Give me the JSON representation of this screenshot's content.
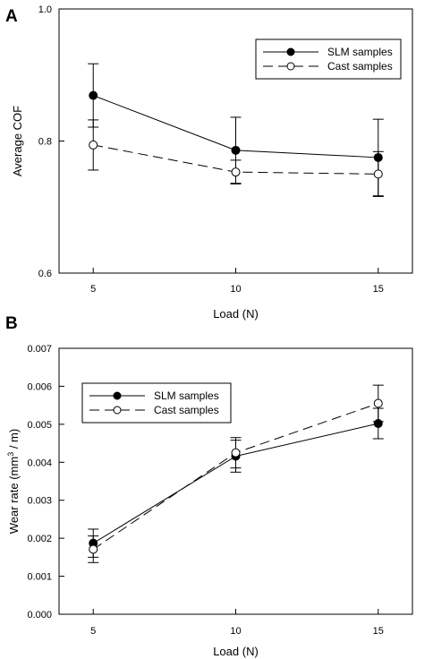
{
  "chart_data": [
    {
      "type": "line",
      "panel_label": "A",
      "xlabel": "Load (N)",
      "ylabel": "Average COF",
      "ylabel_sup": "",
      "ylabel_suffix": "",
      "x": [
        5,
        10,
        15
      ],
      "xlim": [
        3.8,
        16.2
      ],
      "ylim": [
        0.6,
        1.0
      ],
      "x_ticks": [
        "5",
        "10",
        "15"
      ],
      "y_ticks": [
        "0.6",
        "0.8",
        "1.0"
      ],
      "y_tick_values": [
        0.6,
        0.8,
        1.0
      ],
      "grid": false,
      "legend_position": "top-right",
      "series": [
        {
          "name": "SLM samples",
          "marker": "filled-circle",
          "line": "solid",
          "values": [
            0.869,
            0.786,
            0.775
          ],
          "error": [
            0.048,
            0.05,
            0.058
          ]
        },
        {
          "name": "Cast samples",
          "marker": "open-circle",
          "line": "dashed",
          "values": [
            0.794,
            0.753,
            0.75
          ],
          "error": [
            0.038,
            0.018,
            0.034
          ]
        }
      ]
    },
    {
      "type": "line",
      "panel_label": "B",
      "xlabel": "Load (N)",
      "ylabel": "Wear rate (mm",
      "ylabel_sup": "3",
      "ylabel_suffix": " / m)",
      "x": [
        5,
        10,
        15
      ],
      "xlim": [
        3.8,
        16.2
      ],
      "ylim": [
        0.0,
        0.007
      ],
      "x_ticks": [
        "5",
        "10",
        "15"
      ],
      "y_ticks": [
        "0.000",
        "0.001",
        "0.002",
        "0.003",
        "0.004",
        "0.005",
        "0.006",
        "0.007"
      ],
      "y_tick_values": [
        0,
        0.001,
        0.002,
        0.003,
        0.004,
        0.005,
        0.006,
        0.007
      ],
      "grid": false,
      "legend_position": "top-left",
      "series": [
        {
          "name": "SLM samples",
          "marker": "filled-circle",
          "line": "solid",
          "values": [
            0.00187,
            0.00416,
            0.00502
          ],
          "error": [
            0.00037,
            0.00042,
            0.0004
          ]
        },
        {
          "name": "Cast samples",
          "marker": "open-circle",
          "line": "dashed",
          "values": [
            0.00171,
            0.00425,
            0.00555
          ],
          "error": [
            0.00035,
            0.0004,
            0.00048
          ]
        }
      ]
    }
  ]
}
